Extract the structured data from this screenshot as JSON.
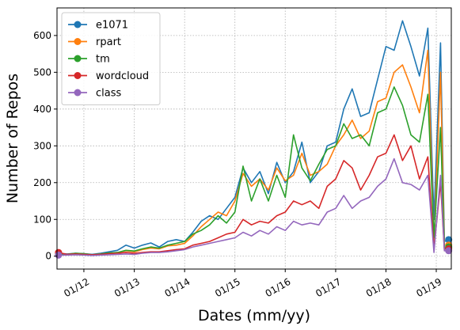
{
  "chart_data": {
    "type": "line",
    "xlabel": "Dates (mm/yy)",
    "ylabel": "Number of Repos",
    "xlim": [
      "2011-06-20",
      "2019-04-20"
    ],
    "ylim": [
      -35,
      675
    ],
    "x_ticks": [
      {
        "date": "2012-01-01",
        "label": "01/12"
      },
      {
        "date": "2013-01-01",
        "label": "01/13"
      },
      {
        "date": "2014-01-01",
        "label": "01/14"
      },
      {
        "date": "2015-01-01",
        "label": "01/15"
      },
      {
        "date": "2016-01-01",
        "label": "01/16"
      },
      {
        "date": "2017-01-01",
        "label": "01/17"
      },
      {
        "date": "2018-01-01",
        "label": "01/18"
      },
      {
        "date": "2019-01-01",
        "label": "01/19"
      }
    ],
    "y_ticks": [
      0,
      100,
      200,
      300,
      400,
      500,
      600
    ],
    "grid": true,
    "legend_position": "top-left",
    "marker_points": "first and last point of each series",
    "series": [
      {
        "name": "e1071",
        "color": "#1f77b4",
        "points": [
          [
            "2011-07-01",
            8
          ],
          [
            "2011-09-01",
            6
          ],
          [
            "2011-11-01",
            8
          ],
          [
            "2012-01-01",
            7
          ],
          [
            "2012-03-01",
            5
          ],
          [
            "2012-05-01",
            8
          ],
          [
            "2012-07-01",
            12
          ],
          [
            "2012-09-01",
            16
          ],
          [
            "2012-11-01",
            30
          ],
          [
            "2013-01-01",
            22
          ],
          [
            "2013-03-01",
            30
          ],
          [
            "2013-05-01",
            36
          ],
          [
            "2013-07-01",
            25
          ],
          [
            "2013-09-01",
            40
          ],
          [
            "2013-11-01",
            45
          ],
          [
            "2014-01-01",
            40
          ],
          [
            "2014-03-01",
            65
          ],
          [
            "2014-05-01",
            95
          ],
          [
            "2014-07-01",
            110
          ],
          [
            "2014-09-01",
            100
          ],
          [
            "2014-11-01",
            130
          ],
          [
            "2015-01-01",
            160
          ],
          [
            "2015-03-01",
            240
          ],
          [
            "2015-05-01",
            200
          ],
          [
            "2015-07-01",
            230
          ],
          [
            "2015-09-01",
            170
          ],
          [
            "2015-11-01",
            255
          ],
          [
            "2016-01-01",
            200
          ],
          [
            "2016-03-01",
            230
          ],
          [
            "2016-05-01",
            310
          ],
          [
            "2016-07-01",
            200
          ],
          [
            "2016-09-01",
            230
          ],
          [
            "2016-11-01",
            300
          ],
          [
            "2017-01-01",
            310
          ],
          [
            "2017-03-01",
            400
          ],
          [
            "2017-05-01",
            455
          ],
          [
            "2017-07-01",
            380
          ],
          [
            "2017-09-01",
            390
          ],
          [
            "2017-11-01",
            480
          ],
          [
            "2018-01-01",
            570
          ],
          [
            "2018-03-01",
            560
          ],
          [
            "2018-05-01",
            640
          ],
          [
            "2018-07-01",
            570
          ],
          [
            "2018-09-01",
            490
          ],
          [
            "2018-11-01",
            620
          ],
          [
            "2018-12-15",
            100
          ],
          [
            "2019-02-01",
            580
          ],
          [
            "2019-03-01",
            40
          ],
          [
            "2019-04-01",
            45
          ]
        ]
      },
      {
        "name": "rpart",
        "color": "#ff7f0e",
        "points": [
          [
            "2011-07-01",
            5
          ],
          [
            "2011-09-01",
            5
          ],
          [
            "2011-11-01",
            7
          ],
          [
            "2012-01-01",
            6
          ],
          [
            "2012-03-01",
            4
          ],
          [
            "2012-05-01",
            6
          ],
          [
            "2012-07-01",
            8
          ],
          [
            "2012-09-01",
            10
          ],
          [
            "2012-11-01",
            15
          ],
          [
            "2013-01-01",
            12
          ],
          [
            "2013-03-01",
            18
          ],
          [
            "2013-05-01",
            22
          ],
          [
            "2013-07-01",
            20
          ],
          [
            "2013-09-01",
            28
          ],
          [
            "2013-11-01",
            30
          ],
          [
            "2014-01-01",
            35
          ],
          [
            "2014-03-01",
            55
          ],
          [
            "2014-05-01",
            80
          ],
          [
            "2014-07-01",
            100
          ],
          [
            "2014-09-01",
            120
          ],
          [
            "2014-11-01",
            110
          ],
          [
            "2015-01-01",
            150
          ],
          [
            "2015-03-01",
            225
          ],
          [
            "2015-05-01",
            190
          ],
          [
            "2015-07-01",
            210
          ],
          [
            "2015-09-01",
            180
          ],
          [
            "2015-11-01",
            240
          ],
          [
            "2016-01-01",
            205
          ],
          [
            "2016-03-01",
            220
          ],
          [
            "2016-05-01",
            280
          ],
          [
            "2016-07-01",
            220
          ],
          [
            "2016-09-01",
            230
          ],
          [
            "2016-11-01",
            250
          ],
          [
            "2017-01-01",
            300
          ],
          [
            "2017-03-01",
            330
          ],
          [
            "2017-05-01",
            370
          ],
          [
            "2017-07-01",
            320
          ],
          [
            "2017-09-01",
            340
          ],
          [
            "2017-11-01",
            420
          ],
          [
            "2018-01-01",
            430
          ],
          [
            "2018-03-01",
            500
          ],
          [
            "2018-05-01",
            520
          ],
          [
            "2018-07-01",
            460
          ],
          [
            "2018-09-01",
            390
          ],
          [
            "2018-11-01",
            560
          ],
          [
            "2018-12-15",
            30
          ],
          [
            "2019-02-01",
            500
          ],
          [
            "2019-03-01",
            20
          ],
          [
            "2019-04-01",
            30
          ]
        ]
      },
      {
        "name": "tm",
        "color": "#2ca02c",
        "points": [
          [
            "2011-07-01",
            6
          ],
          [
            "2011-09-01",
            5
          ],
          [
            "2011-11-01",
            8
          ],
          [
            "2012-01-01",
            7
          ],
          [
            "2012-03-01",
            4
          ],
          [
            "2012-05-01",
            6
          ],
          [
            "2012-07-01",
            9
          ],
          [
            "2012-09-01",
            10
          ],
          [
            "2012-11-01",
            16
          ],
          [
            "2013-01-01",
            14
          ],
          [
            "2013-03-01",
            20
          ],
          [
            "2013-05-01",
            25
          ],
          [
            "2013-07-01",
            22
          ],
          [
            "2013-09-01",
            30
          ],
          [
            "2013-11-01",
            35
          ],
          [
            "2014-01-01",
            40
          ],
          [
            "2014-03-01",
            60
          ],
          [
            "2014-05-01",
            70
          ],
          [
            "2014-07-01",
            85
          ],
          [
            "2014-09-01",
            110
          ],
          [
            "2014-11-01",
            90
          ],
          [
            "2015-01-01",
            120
          ],
          [
            "2015-03-01",
            245
          ],
          [
            "2015-05-01",
            150
          ],
          [
            "2015-07-01",
            210
          ],
          [
            "2015-09-01",
            150
          ],
          [
            "2015-11-01",
            220
          ],
          [
            "2016-01-01",
            160
          ],
          [
            "2016-03-01",
            330
          ],
          [
            "2016-05-01",
            240
          ],
          [
            "2016-07-01",
            205
          ],
          [
            "2016-09-01",
            250
          ],
          [
            "2016-11-01",
            290
          ],
          [
            "2017-01-01",
            300
          ],
          [
            "2017-03-01",
            360
          ],
          [
            "2017-05-01",
            320
          ],
          [
            "2017-07-01",
            330
          ],
          [
            "2017-09-01",
            300
          ],
          [
            "2017-11-01",
            390
          ],
          [
            "2018-01-01",
            400
          ],
          [
            "2018-03-01",
            460
          ],
          [
            "2018-05-01",
            410
          ],
          [
            "2018-07-01",
            330
          ],
          [
            "2018-09-01",
            310
          ],
          [
            "2018-11-01",
            440
          ],
          [
            "2018-12-15",
            50
          ],
          [
            "2019-02-01",
            350
          ],
          [
            "2019-03-01",
            20
          ],
          [
            "2019-04-01",
            25
          ]
        ]
      },
      {
        "name": "wordcloud",
        "color": "#d62728",
        "points": [
          [
            "2011-07-01",
            10
          ],
          [
            "2011-09-01",
            5
          ],
          [
            "2011-11-01",
            6
          ],
          [
            "2012-01-01",
            5
          ],
          [
            "2012-03-01",
            4
          ],
          [
            "2012-05-01",
            5
          ],
          [
            "2012-07-01",
            7
          ],
          [
            "2012-09-01",
            8
          ],
          [
            "2012-11-01",
            10
          ],
          [
            "2013-01-01",
            8
          ],
          [
            "2013-03-01",
            10
          ],
          [
            "2013-05-01",
            12
          ],
          [
            "2013-07-01",
            12
          ],
          [
            "2013-09-01",
            15
          ],
          [
            "2013-11-01",
            18
          ],
          [
            "2014-01-01",
            20
          ],
          [
            "2014-03-01",
            30
          ],
          [
            "2014-05-01",
            35
          ],
          [
            "2014-07-01",
            40
          ],
          [
            "2014-09-01",
            50
          ],
          [
            "2014-11-01",
            60
          ],
          [
            "2015-01-01",
            65
          ],
          [
            "2015-03-01",
            100
          ],
          [
            "2015-05-01",
            85
          ],
          [
            "2015-07-01",
            95
          ],
          [
            "2015-09-01",
            90
          ],
          [
            "2015-11-01",
            110
          ],
          [
            "2016-01-01",
            120
          ],
          [
            "2016-03-01",
            150
          ],
          [
            "2016-05-01",
            140
          ],
          [
            "2016-07-01",
            150
          ],
          [
            "2016-09-01",
            130
          ],
          [
            "2016-11-01",
            190
          ],
          [
            "2017-01-01",
            210
          ],
          [
            "2017-03-01",
            260
          ],
          [
            "2017-05-01",
            240
          ],
          [
            "2017-07-01",
            180
          ],
          [
            "2017-09-01",
            220
          ],
          [
            "2017-11-01",
            270
          ],
          [
            "2018-01-01",
            280
          ],
          [
            "2018-03-01",
            330
          ],
          [
            "2018-05-01",
            260
          ],
          [
            "2018-07-01",
            300
          ],
          [
            "2018-09-01",
            210
          ],
          [
            "2018-11-01",
            270
          ],
          [
            "2018-12-15",
            20
          ],
          [
            "2019-02-01",
            200
          ],
          [
            "2019-03-01",
            15
          ],
          [
            "2019-04-01",
            20
          ]
        ]
      },
      {
        "name": "class",
        "color": "#9467bd",
        "points": [
          [
            "2011-07-01",
            3
          ],
          [
            "2011-09-01",
            3
          ],
          [
            "2011-11-01",
            4
          ],
          [
            "2012-01-01",
            3
          ],
          [
            "2012-03-01",
            2
          ],
          [
            "2012-05-01",
            3
          ],
          [
            "2012-07-01",
            4
          ],
          [
            "2012-09-01",
            5
          ],
          [
            "2012-11-01",
            6
          ],
          [
            "2013-01-01",
            5
          ],
          [
            "2013-03-01",
            8
          ],
          [
            "2013-05-01",
            10
          ],
          [
            "2013-07-01",
            10
          ],
          [
            "2013-09-01",
            12
          ],
          [
            "2013-11-01",
            15
          ],
          [
            "2014-01-01",
            18
          ],
          [
            "2014-03-01",
            25
          ],
          [
            "2014-05-01",
            30
          ],
          [
            "2014-07-01",
            35
          ],
          [
            "2014-09-01",
            40
          ],
          [
            "2014-11-01",
            45
          ],
          [
            "2015-01-01",
            50
          ],
          [
            "2015-03-01",
            65
          ],
          [
            "2015-05-01",
            55
          ],
          [
            "2015-07-01",
            70
          ],
          [
            "2015-09-01",
            60
          ],
          [
            "2015-11-01",
            80
          ],
          [
            "2016-01-01",
            70
          ],
          [
            "2016-03-01",
            95
          ],
          [
            "2016-05-01",
            85
          ],
          [
            "2016-07-01",
            90
          ],
          [
            "2016-09-01",
            85
          ],
          [
            "2016-11-01",
            120
          ],
          [
            "2017-01-01",
            130
          ],
          [
            "2017-03-01",
            165
          ],
          [
            "2017-05-01",
            130
          ],
          [
            "2017-07-01",
            150
          ],
          [
            "2017-09-01",
            160
          ],
          [
            "2017-11-01",
            190
          ],
          [
            "2018-01-01",
            210
          ],
          [
            "2018-03-01",
            265
          ],
          [
            "2018-05-01",
            200
          ],
          [
            "2018-07-01",
            195
          ],
          [
            "2018-09-01",
            180
          ],
          [
            "2018-11-01",
            220
          ],
          [
            "2018-12-15",
            10
          ],
          [
            "2019-02-01",
            220
          ],
          [
            "2019-03-01",
            15
          ],
          [
            "2019-04-01",
            15
          ]
        ]
      }
    ]
  }
}
